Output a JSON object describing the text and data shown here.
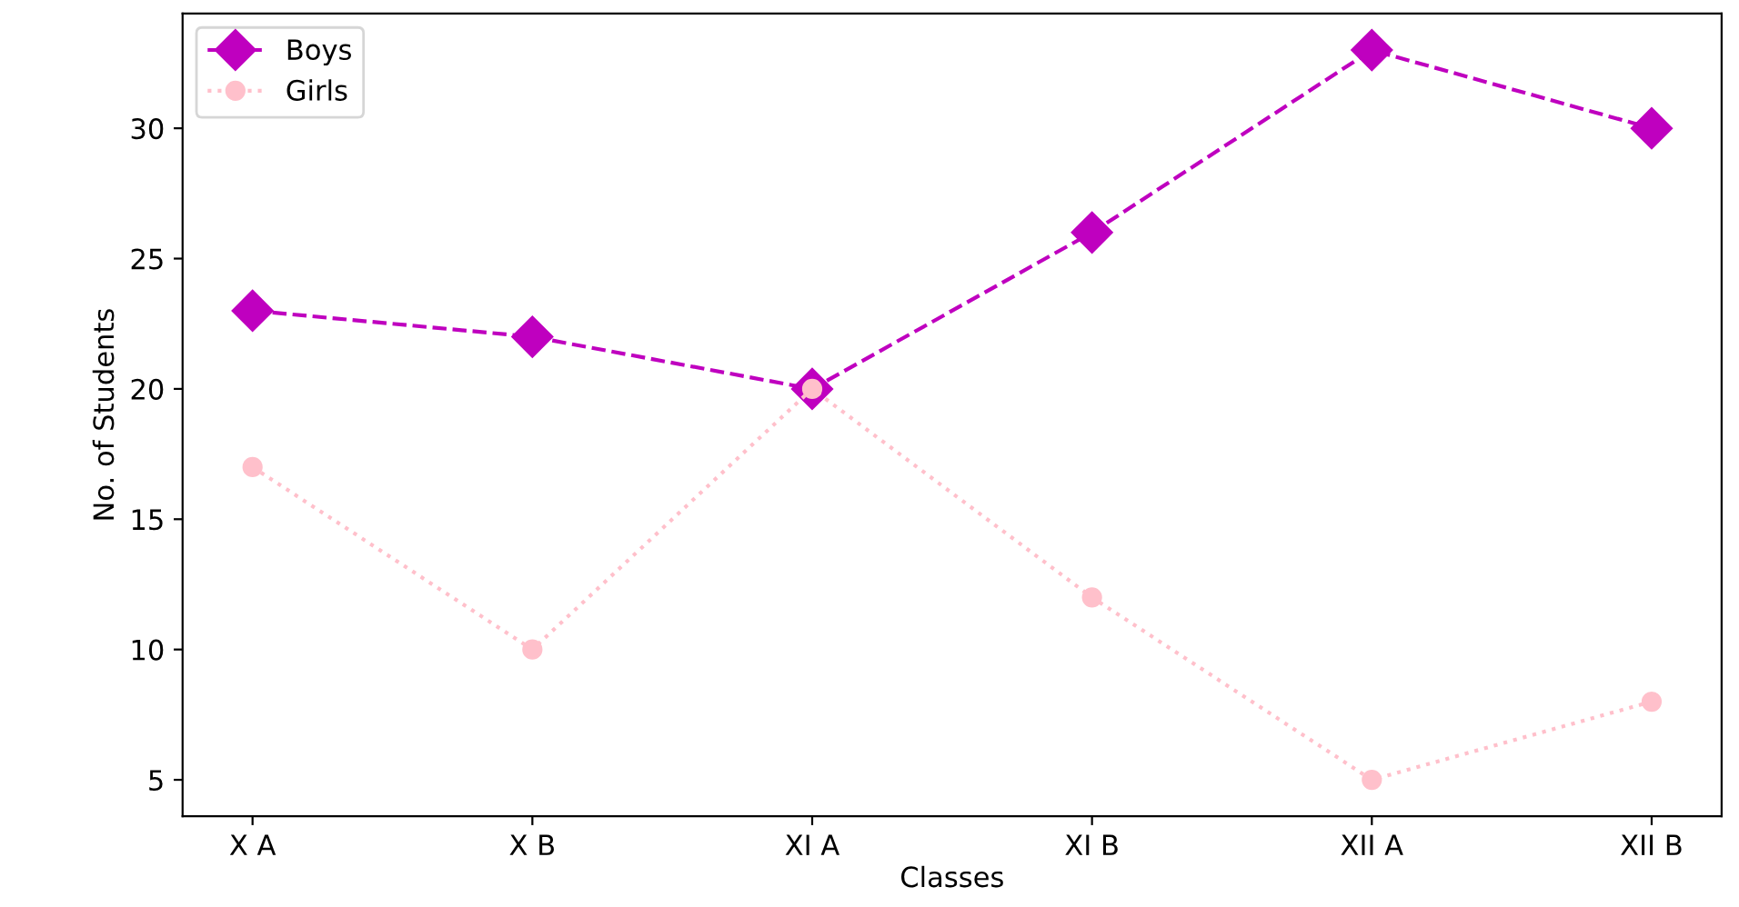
{
  "chart_data": {
    "type": "line",
    "xlabel": "Classes",
    "ylabel": "No. of Students",
    "categories": [
      "X A",
      "X B",
      "XI A",
      "XI B",
      "XII A",
      "XII B"
    ],
    "series": [
      {
        "name": "Boys",
        "color": "#bf00bf",
        "values": [
          23,
          22,
          20,
          26,
          33,
          30
        ],
        "marker": "diamond",
        "line_style": "dashed"
      },
      {
        "name": "Girls",
        "color": "#ffc0cb",
        "values": [
          17,
          10,
          20,
          12,
          5,
          8
        ],
        "marker": "circle",
        "line_style": "dotted"
      }
    ],
    "ylim": [
      3.6,
      34.4
    ],
    "yticks": [
      5,
      10,
      15,
      20,
      25,
      30
    ],
    "grid": false,
    "legend": "top left"
  }
}
